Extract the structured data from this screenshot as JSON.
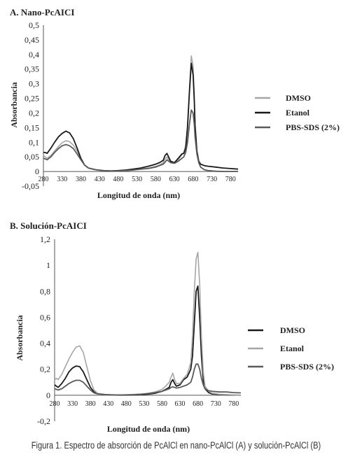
{
  "caption": "Figura 1. Espectro de absorción de PcAlCl en nano-PcAlCl (A) y solución-PcAlCl (B)",
  "chart_data": [
    {
      "type": "line",
      "title": "A. Nano-PcAICI",
      "xlabel": "Longitud de onda (nm)",
      "ylabel": "Absorbancia",
      "xlim": [
        280,
        800
      ],
      "ylim": [
        -0.05,
        0.5
      ],
      "xticks": [
        "280",
        "330",
        "380",
        "430",
        "480",
        "530",
        "580",
        "630",
        "680",
        "730",
        "780"
      ],
      "yticks": [
        "-0,05",
        "0",
        "0,05",
        "0,1",
        "0,15",
        "0,2",
        "0,25",
        "0,3",
        "0,35",
        "0,4",
        "0,45",
        "0,5"
      ],
      "ytick_values": [
        -0.05,
        0,
        0.05,
        0.1,
        0.15,
        0.2,
        0.25,
        0.3,
        0.35,
        0.4,
        0.45,
        0.5
      ],
      "legend_position": "right",
      "series": [
        {
          "name": "DMSO",
          "color": "#a6a6a6",
          "width": 1.6,
          "x": [
            280,
            285,
            290,
            300,
            310,
            320,
            330,
            340,
            350,
            360,
            370,
            380,
            390,
            400,
            420,
            440,
            460,
            480,
            500,
            520,
            540,
            560,
            580,
            590,
            600,
            605,
            610,
            615,
            620,
            630,
            640,
            650,
            655,
            660,
            665,
            670,
            675,
            680,
            683,
            685,
            690,
            695,
            700,
            710,
            720,
            740,
            760,
            780,
            800
          ],
          "y": [
            0.055,
            0.05,
            0.045,
            0.055,
            0.07,
            0.085,
            0.098,
            0.105,
            0.102,
            0.09,
            0.07,
            0.045,
            0.022,
            0.012,
            0.006,
            0.003,
            0.002,
            0.002,
            0.003,
            0.005,
            0.008,
            0.012,
            0.018,
            0.022,
            0.03,
            0.042,
            0.05,
            0.04,
            0.032,
            0.028,
            0.04,
            0.058,
            0.065,
            0.09,
            0.16,
            0.28,
            0.395,
            0.36,
            0.26,
            0.17,
            0.07,
            0.03,
            0.015,
            0.006,
            0.003,
            0.001,
            0.0,
            0.0,
            0.0
          ]
        },
        {
          "name": "Etanol",
          "color": "#1a1a1a",
          "width": 1.8,
          "x": [
            280,
            285,
            290,
            300,
            310,
            320,
            330,
            340,
            350,
            360,
            370,
            380,
            390,
            400,
            420,
            440,
            460,
            480,
            500,
            520,
            540,
            560,
            580,
            590,
            600,
            605,
            610,
            615,
            620,
            630,
            640,
            650,
            655,
            660,
            665,
            670,
            675,
            680,
            683,
            685,
            690,
            695,
            700,
            710,
            720,
            740,
            760,
            780,
            800
          ],
          "y": [
            0.065,
            0.065,
            0.062,
            0.08,
            0.1,
            0.118,
            0.13,
            0.138,
            0.132,
            0.112,
            0.08,
            0.045,
            0.022,
            0.012,
            0.006,
            0.003,
            0.002,
            0.003,
            0.005,
            0.008,
            0.012,
            0.018,
            0.025,
            0.03,
            0.038,
            0.055,
            0.062,
            0.048,
            0.035,
            0.03,
            0.045,
            0.06,
            0.062,
            0.08,
            0.15,
            0.27,
            0.37,
            0.33,
            0.24,
            0.16,
            0.07,
            0.035,
            0.025,
            0.02,
            0.018,
            0.015,
            0.012,
            0.01,
            0.008
          ]
        },
        {
          "name": "PBS-SDS (2%)",
          "color": "#5a5a5a",
          "width": 1.8,
          "x": [
            280,
            285,
            290,
            300,
            310,
            320,
            330,
            340,
            350,
            360,
            370,
            380,
            390,
            400,
            420,
            440,
            460,
            480,
            500,
            520,
            540,
            560,
            580,
            590,
            600,
            605,
            610,
            615,
            620,
            630,
            640,
            650,
            655,
            660,
            665,
            670,
            675,
            680,
            683,
            685,
            690,
            695,
            700,
            710,
            720,
            740,
            760,
            780,
            800
          ],
          "y": [
            0.045,
            0.043,
            0.04,
            0.05,
            0.065,
            0.078,
            0.088,
            0.092,
            0.088,
            0.078,
            0.06,
            0.04,
            0.022,
            0.012,
            0.006,
            0.003,
            0.002,
            0.002,
            0.003,
            0.005,
            0.008,
            0.01,
            0.015,
            0.02,
            0.025,
            0.032,
            0.04,
            0.035,
            0.03,
            0.028,
            0.035,
            0.045,
            0.05,
            0.065,
            0.1,
            0.16,
            0.21,
            0.2,
            0.16,
            0.12,
            0.06,
            0.03,
            0.015,
            0.006,
            0.003,
            0.001,
            0.0,
            0.0,
            0.0
          ]
        }
      ]
    },
    {
      "type": "line",
      "title": "B. Solución-PcAICI",
      "xlabel": "Longitud de onda (nm)",
      "ylabel": "Absorbancia",
      "xlim": [
        280,
        800
      ],
      "ylim": [
        -0.2,
        1.2
      ],
      "xticks": [
        "280",
        "330",
        "380",
        "430",
        "480",
        "530",
        "580",
        "630",
        "680",
        "730",
        "780"
      ],
      "yticks": [
        "-0,2",
        "0",
        "0,2",
        "0,4",
        "0,6",
        "0,8",
        "1",
        "1,2"
      ],
      "ytick_values": [
        -0.2,
        0,
        0.2,
        0.4,
        0.6,
        0.8,
        1,
        1.2
      ],
      "legend_position": "right",
      "series": [
        {
          "name": "DMSO",
          "color": "#1a1a1a",
          "width": 1.8,
          "x": [
            280,
            285,
            290,
            300,
            310,
            320,
            330,
            340,
            350,
            360,
            370,
            380,
            390,
            400,
            420,
            440,
            460,
            480,
            500,
            520,
            540,
            560,
            580,
            590,
            600,
            605,
            610,
            615,
            620,
            630,
            640,
            650,
            660,
            665,
            670,
            675,
            680,
            685,
            690,
            695,
            700,
            710,
            720,
            740,
            760,
            780,
            800
          ],
          "y": [
            0.08,
            0.07,
            0.06,
            0.09,
            0.13,
            0.18,
            0.21,
            0.225,
            0.22,
            0.18,
            0.12,
            0.06,
            0.025,
            0.012,
            0.005,
            0.002,
            0.001,
            0.001,
            0.002,
            0.004,
            0.008,
            0.015,
            0.03,
            0.045,
            0.06,
            0.1,
            0.12,
            0.09,
            0.07,
            0.08,
            0.12,
            0.14,
            0.2,
            0.3,
            0.55,
            0.8,
            0.84,
            0.6,
            0.3,
            0.12,
            0.05,
            0.02,
            0.01,
            0.005,
            0.003,
            0.002,
            0.0
          ]
        },
        {
          "name": "Etanol",
          "color": "#a6a6a6",
          "width": 1.6,
          "x": [
            280,
            285,
            290,
            300,
            310,
            320,
            330,
            340,
            350,
            360,
            370,
            380,
            390,
            400,
            420,
            440,
            460,
            480,
            500,
            520,
            540,
            560,
            580,
            590,
            600,
            605,
            610,
            615,
            620,
            630,
            640,
            650,
            660,
            665,
            670,
            675,
            680,
            685,
            690,
            695,
            700,
            710,
            720,
            740,
            760,
            780,
            800
          ],
          "y": [
            0.12,
            0.13,
            0.12,
            0.16,
            0.22,
            0.28,
            0.33,
            0.37,
            0.38,
            0.33,
            0.22,
            0.11,
            0.04,
            0.015,
            0.005,
            0.002,
            0.002,
            0.002,
            0.004,
            0.008,
            0.015,
            0.025,
            0.045,
            0.07,
            0.1,
            0.14,
            0.17,
            0.12,
            0.09,
            0.09,
            0.13,
            0.16,
            0.25,
            0.45,
            0.8,
            1.05,
            1.1,
            0.85,
            0.45,
            0.18,
            0.07,
            0.03,
            0.015,
            0.008,
            0.005,
            0.003,
            0.0
          ]
        },
        {
          "name": "PBS-SDS (2%)",
          "color": "#5a5a5a",
          "width": 1.8,
          "x": [
            280,
            285,
            290,
            300,
            310,
            320,
            330,
            340,
            350,
            360,
            370,
            380,
            390,
            400,
            420,
            440,
            460,
            480,
            500,
            520,
            540,
            560,
            580,
            590,
            600,
            605,
            610,
            615,
            620,
            630,
            640,
            650,
            660,
            665,
            670,
            675,
            680,
            685,
            690,
            695,
            700,
            710,
            720,
            740,
            760,
            780,
            800
          ],
          "y": [
            0.05,
            0.045,
            0.04,
            0.05,
            0.07,
            0.09,
            0.105,
            0.115,
            0.115,
            0.1,
            0.07,
            0.04,
            0.018,
            0.01,
            0.005,
            0.003,
            0.002,
            0.003,
            0.005,
            0.008,
            0.012,
            0.02,
            0.03,
            0.04,
            0.05,
            0.06,
            0.065,
            0.06,
            0.055,
            0.06,
            0.07,
            0.08,
            0.1,
            0.14,
            0.2,
            0.24,
            0.24,
            0.2,
            0.13,
            0.08,
            0.05,
            0.035,
            0.03,
            0.025,
            0.025,
            0.02,
            0.018
          ]
        }
      ]
    }
  ]
}
